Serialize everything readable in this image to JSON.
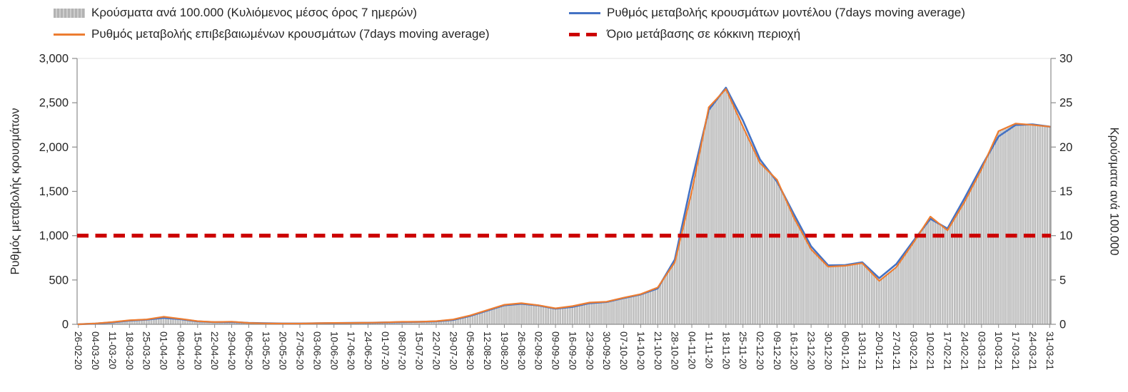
{
  "legend": {
    "items": [
      {
        "label": "Κρούσματα ανά 100.000 (Κυλιόμενος μέσος όρος 7 ημερών)",
        "marker": "bar",
        "color": "#b3b3b3"
      },
      {
        "label": "Ρυθμός μεταβολής κρουσμάτων μοντέλου (7days moving average)",
        "marker": "line",
        "color": "#4472c4"
      },
      {
        "label": "Ρυθμός μεταβολής επιβεβαιωμένων κρουσμάτων (7days moving average)",
        "marker": "line",
        "color": "#ed7d31"
      },
      {
        "label": "Όριο μετάβασης σε κόκκινη περιοχή",
        "marker": "dash",
        "color": "#cc0000"
      }
    ]
  },
  "axes": {
    "left": {
      "title": "Ρυθμός μεταβολής κρουσμάτων",
      "ticks": [
        "0",
        "500",
        "1,000",
        "1,500",
        "2,000",
        "2,500",
        "3,000"
      ],
      "tick_values": [
        0,
        500,
        1000,
        1500,
        2000,
        2500,
        3000
      ]
    },
    "right": {
      "title": "Κρούσματα ανά 100.000",
      "ticks": [
        "0",
        "5",
        "10",
        "15",
        "20",
        "25",
        "30"
      ],
      "tick_values": [
        0,
        5,
        10,
        15,
        20,
        25,
        30
      ]
    }
  },
  "chart_data": {
    "type": "combo",
    "title": "",
    "left_ylim": [
      0,
      3000
    ],
    "right_ylim": [
      0,
      30
    ],
    "grid": false,
    "legend_position": "top",
    "x": [
      "26-02-20",
      "04-03-20",
      "11-03-20",
      "18-03-20",
      "25-03-20",
      "01-04-20",
      "08-04-20",
      "15-04-20",
      "22-04-20",
      "29-04-20",
      "06-05-20",
      "13-05-20",
      "20-05-20",
      "27-05-20",
      "03-06-20",
      "10-06-20",
      "17-06-20",
      "24-06-20",
      "01-07-20",
      "08-07-20",
      "15-07-20",
      "22-07-20",
      "29-07-20",
      "05-08-20",
      "12-08-20",
      "19-08-20",
      "26-08-20",
      "02-09-20",
      "09-09-20",
      "16-09-20",
      "23-09-20",
      "30-09-20",
      "07-10-20",
      "14-10-20",
      "21-10-20",
      "28-10-20",
      "04-11-20",
      "11-11-20",
      "18-11-20",
      "25-11-20",
      "02-12-20",
      "09-12-20",
      "16-12-20",
      "23-12-20",
      "30-12-20",
      "06-01-21",
      "13-01-21",
      "20-01-21",
      "27-01-21",
      "03-02-21",
      "10-02-21",
      "17-02-21",
      "24-02-21",
      "03-03-21",
      "10-03-21",
      "17-03-21",
      "24-03-21",
      "31-03-21"
    ],
    "series": [
      {
        "name": "Κρούσματα ανά 100.000 (Κυλιόμενος μέσος όρος 7 ημερών)",
        "type": "bar",
        "axis": "right",
        "color": "#d2d2d2",
        "edge_color": "#969696",
        "values": [
          0,
          0.1,
          0.25,
          0.45,
          0.55,
          0.85,
          0.6,
          0.35,
          0.25,
          0.3,
          0.15,
          0.1,
          0.1,
          0.1,
          0.12,
          0.15,
          0.15,
          0.18,
          0.22,
          0.28,
          0.28,
          0.35,
          0.55,
          1.0,
          1.6,
          2.2,
          2.4,
          2.15,
          1.8,
          2.05,
          2.45,
          2.55,
          3.0,
          3.4,
          4.2,
          7.0,
          15.0,
          24.5,
          26.5,
          22.3,
          18.2,
          16.3,
          12.0,
          8.4,
          6.5,
          6.6,
          6.9,
          4.9,
          6.4,
          9.2,
          12.1,
          10.6,
          13.8,
          17.5,
          21.8,
          22.7,
          22.5,
          22.3
        ]
      },
      {
        "name": "Ρυθμός μεταβολής κρουσμάτων μοντέλου (7days moving average)",
        "type": "line",
        "axis": "left",
        "color": "#4472c4",
        "values": [
          0,
          8,
          22,
          42,
          52,
          72,
          58,
          33,
          24,
          26,
          16,
          11,
          9,
          9,
          12,
          14,
          15,
          17,
          21,
          25,
          27,
          33,
          50,
          95,
          155,
          215,
          232,
          212,
          176,
          196,
          238,
          252,
          296,
          336,
          405,
          730,
          1620,
          2420,
          2670,
          2300,
          1860,
          1610,
          1240,
          880,
          665,
          668,
          700,
          520,
          680,
          940,
          1190,
          1080,
          1420,
          1780,
          2120,
          2250,
          2255,
          2230
        ]
      },
      {
        "name": "Ρυθμός μεταβολής επιβεβαιωμένων κρουσμάτων (7days moving average)",
        "type": "line",
        "axis": "left",
        "color": "#ed7d31",
        "values": [
          0,
          10,
          25,
          45,
          55,
          85,
          62,
          35,
          25,
          30,
          15,
          10,
          8,
          8,
          12,
          15,
          15,
          18,
          22,
          28,
          28,
          35,
          55,
          100,
          160,
          220,
          238,
          215,
          180,
          205,
          245,
          255,
          300,
          340,
          415,
          700,
          1500,
          2450,
          2655,
          2230,
          1820,
          1630,
          1200,
          845,
          650,
          660,
          690,
          490,
          645,
          920,
          1215,
          1060,
          1380,
          1750,
          2180,
          2265,
          2250,
          2230
        ]
      },
      {
        "name": "Όριο μετάβασης σε κόκκινη περιοχή",
        "type": "threshold",
        "axis": "left",
        "color": "#cc0000",
        "value": 1000
      }
    ]
  }
}
